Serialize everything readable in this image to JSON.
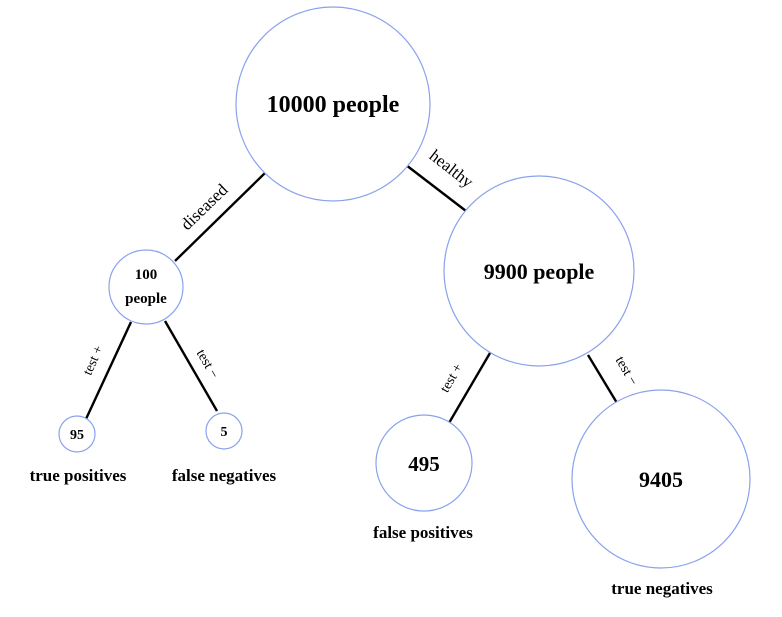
{
  "nodes": {
    "root": {
      "label": "10000 people"
    },
    "diseased": {
      "label_line1": "100",
      "label_line2": "people"
    },
    "healthy": {
      "label": "9900 people"
    },
    "true_positive": {
      "label": "95",
      "caption": "true positives"
    },
    "false_negative": {
      "label": "5",
      "caption": "false negatives"
    },
    "false_positive": {
      "label": "495",
      "caption": "false positives"
    },
    "true_negative": {
      "label": "9405",
      "caption": "true negatives"
    }
  },
  "edges": {
    "root_diseased": "diseased",
    "root_healthy": "healthy",
    "diseased_pos": "test +",
    "diseased_neg": "test −",
    "healthy_pos": "test +",
    "healthy_neg": "test −"
  },
  "colors": {
    "node_outline": "#8aa2ec",
    "edge": "#000000"
  }
}
